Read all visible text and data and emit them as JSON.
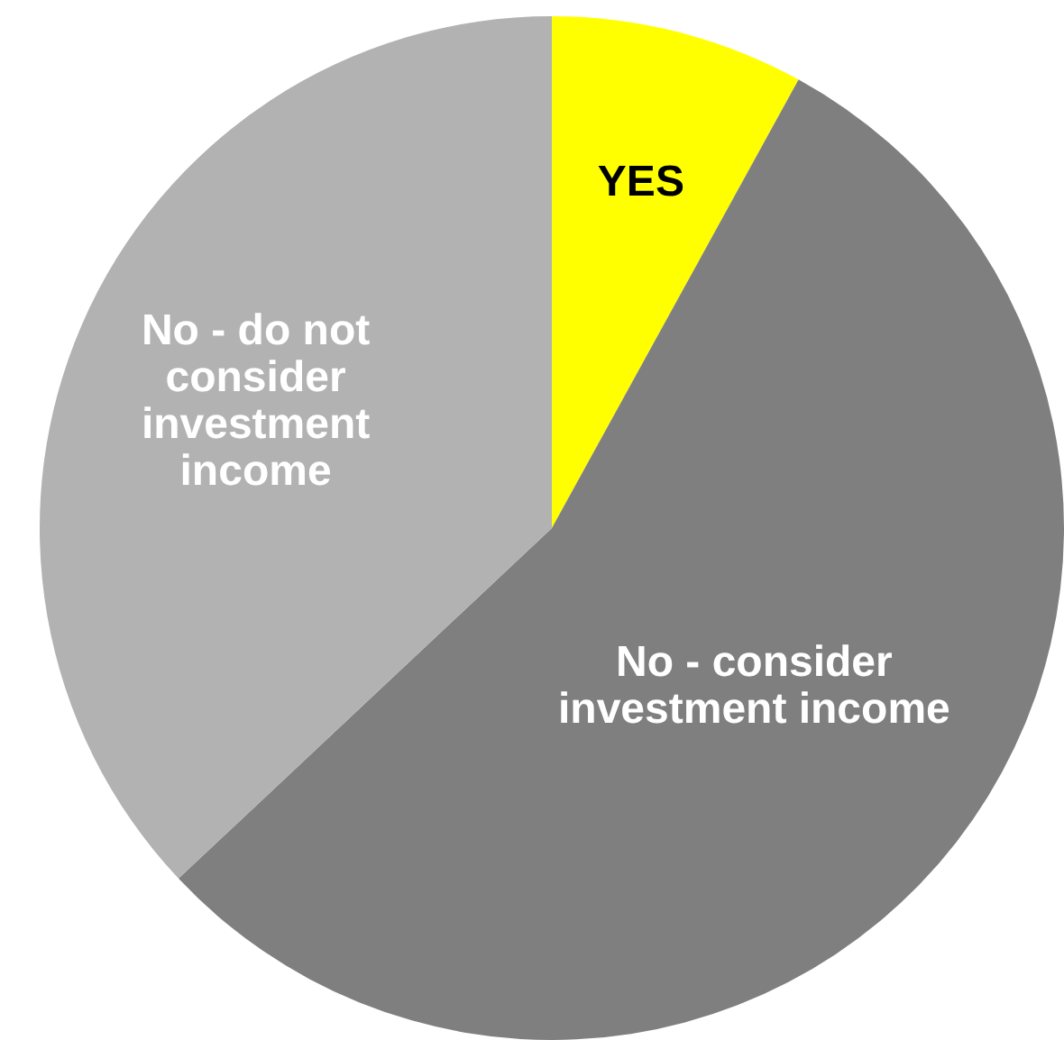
{
  "chart_data": {
    "type": "pie",
    "categories": [
      "YES",
      "No - consider investment income",
      "No - do not consider investment income"
    ],
    "values": [
      8,
      55,
      37
    ],
    "colors": [
      "#ffff00",
      "#7f7f7f",
      "#b2b2b2"
    ],
    "legend": false
  }
}
